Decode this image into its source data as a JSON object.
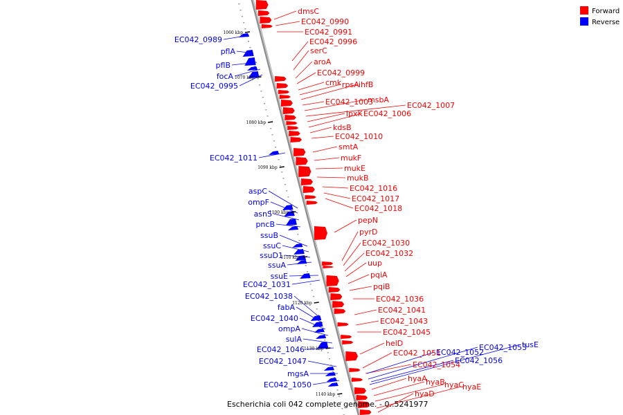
{
  "colors": {
    "forward": "#ff0000",
    "reverse": "#0000ff",
    "axis": "#808080"
  },
  "legend": [
    {
      "label": "Forward",
      "color": "#ff0000"
    },
    {
      "label": "Reverse",
      "color": "#0000ff"
    }
  ],
  "caption": "Escherichia coli 042 complete genome. - 0..5241977",
  "ticks": [
    "1060 kbp",
    "1070 kbp",
    "1080 kbp",
    "1090 kbp",
    "1100 kbp",
    "1110 kbp",
    "1120 kbp",
    "1130 kbp",
    "1140 kbp"
  ],
  "forward_labels": [
    "dmsC",
    "EC042_0990",
    "EC042_0991",
    "EC042_0996",
    "serC",
    "aroA",
    "EC042_0999",
    "cmk",
    "rpsA",
    "ihfB",
    "EC042_1003",
    "msbA",
    "EC042_1007",
    "lpxK",
    "EC042_1006",
    "kdsB",
    "EC042_1010",
    "smtA",
    "mukF",
    "mukE",
    "mukB",
    "EC042_1016",
    "EC042_1017",
    "EC042_1018",
    "pepN",
    "pyrD",
    "EC042_1030",
    "EC042_1032",
    "uup",
    "pqiA",
    "pqiB",
    "EC042_1036",
    "EC042_1041",
    "EC042_1043",
    "EC042_1045",
    "helD",
    "EC042_1051",
    "EC042_1054",
    "hyaA",
    "hyaB",
    "hyaC",
    "hyaE",
    "hyaD"
  ],
  "reverse_labels_left": [
    "EC042_0989",
    "pflA",
    "pflB",
    "focA",
    "EC042_0995",
    "EC042_1011",
    "aspC",
    "ompF",
    "asnS",
    "pncB",
    "ssuB",
    "ssuC",
    "ssuD1",
    "ssuA",
    "ssuE",
    "EC042_1031",
    "EC042_1038",
    "fabA",
    "EC042_1040",
    "ompA",
    "sulA",
    "EC042_1046",
    "EC042_1047",
    "mgsA",
    "EC042_1050"
  ],
  "reverse_labels_right": [
    "EC042_1052",
    "EC042_1053",
    "tusE",
    "EC042_1056"
  ]
}
